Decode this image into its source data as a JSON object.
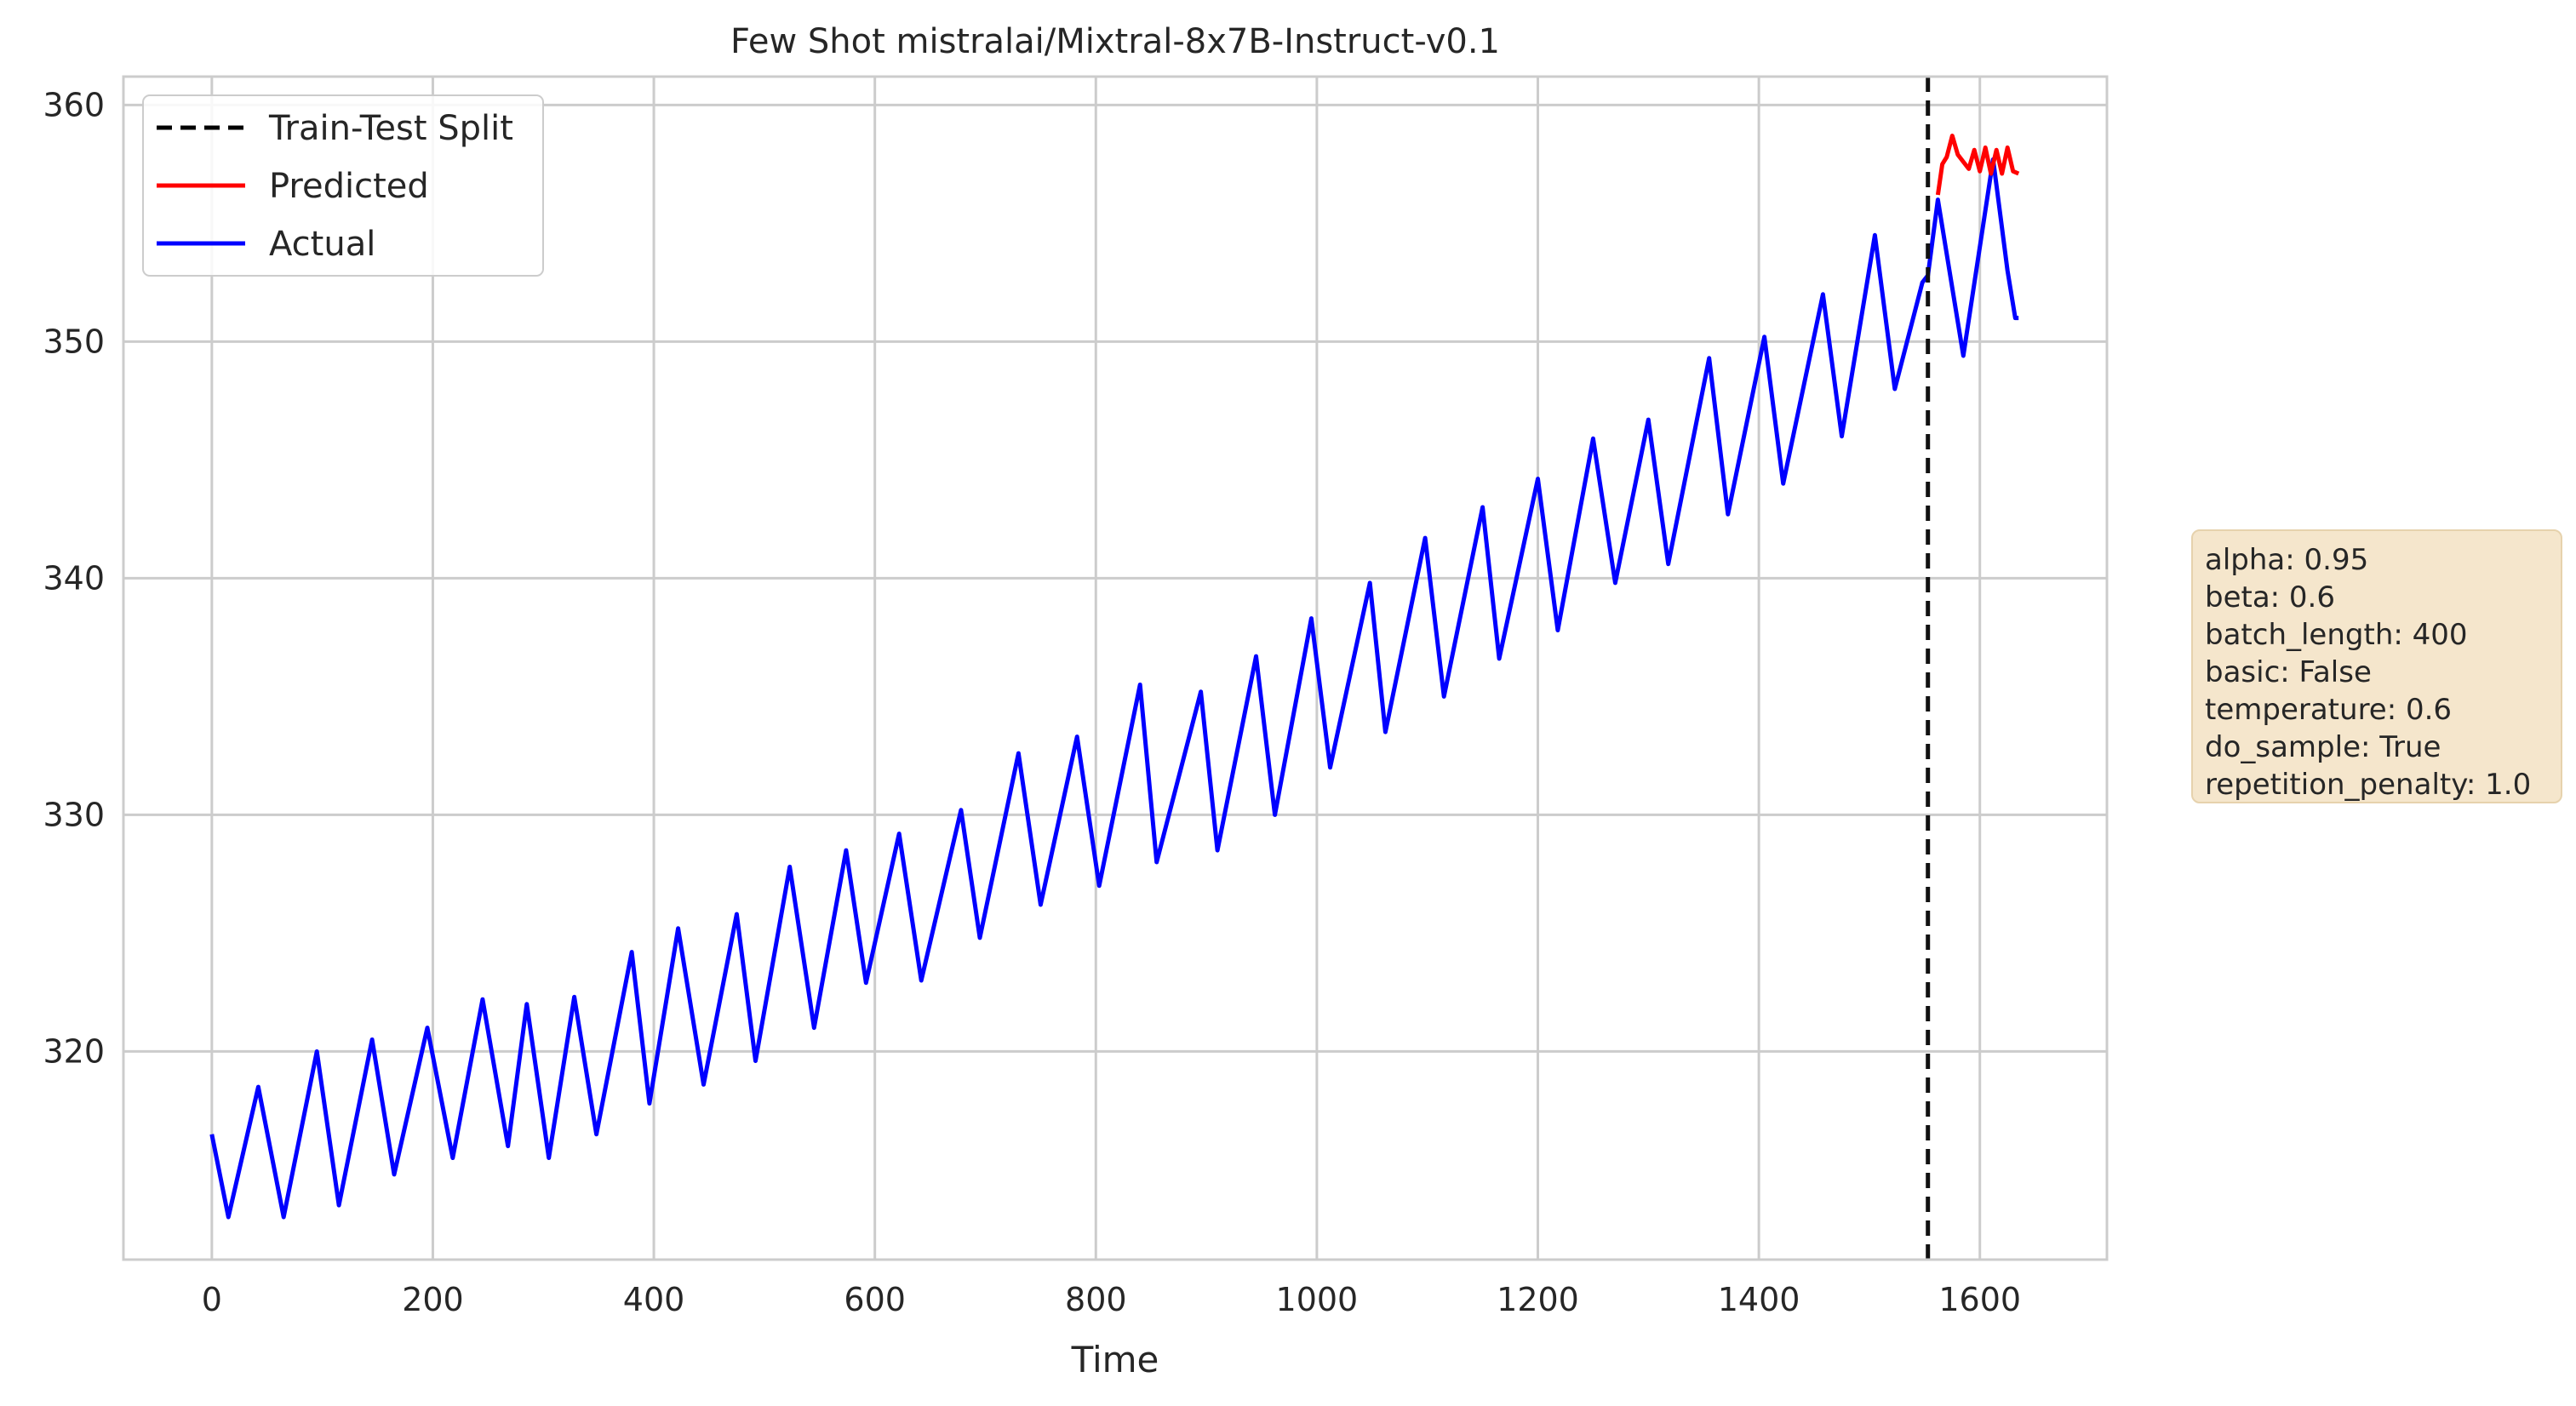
{
  "chart_data": {
    "type": "line",
    "title": "Few Shot mistralai/Mixtral-8x7B-Instruct-v0.1",
    "xlabel": "Time",
    "ylabel": "",
    "xlim": [
      -80,
      1715
    ],
    "ylim": [
      311.2,
      361.2
    ],
    "xticks": [
      0,
      200,
      400,
      600,
      800,
      1000,
      1200,
      1400,
      1600
    ],
    "yticks": [
      320,
      330,
      340,
      350,
      360
    ],
    "grid": true,
    "legend": {
      "placement": "top-left",
      "entries": [
        {
          "name": "Train-Test Split",
          "color": "#000000",
          "style": "dashed"
        },
        {
          "name": "Predicted",
          "color": "#ff0000",
          "style": "solid"
        },
        {
          "name": "Actual",
          "color": "#0000ff",
          "style": "solid"
        }
      ]
    },
    "split_x": 1553,
    "series": [
      {
        "name": "Actual",
        "color": "#0000ff",
        "x": [
          0,
          15,
          42,
          65,
          95,
          115,
          145,
          165,
          195,
          218,
          245,
          268,
          285,
          305,
          328,
          348,
          380,
          396,
          422,
          445,
          475,
          492,
          523,
          545,
          574,
          592,
          622,
          642,
          678,
          695,
          730,
          750,
          783,
          803,
          840,
          855,
          895,
          910,
          945,
          962,
          995,
          1012,
          1048,
          1062,
          1098,
          1115,
          1150,
          1165,
          1200,
          1218,
          1250,
          1270,
          1300,
          1318,
          1355,
          1372,
          1405,
          1422,
          1458,
          1475,
          1505,
          1523,
          1548,
          1553,
          1562,
          1585,
          1612,
          1625,
          1632,
          1635
        ],
        "values": [
          316.5,
          313,
          318.5,
          313,
          320,
          313.5,
          320.5,
          314.8,
          321,
          315.5,
          322.2,
          316,
          322,
          315.5,
          322.3,
          316.5,
          324.2,
          317.8,
          325.2,
          318.6,
          325.8,
          319.6,
          327.8,
          321,
          328.5,
          322.9,
          329.2,
          323,
          330.2,
          324.8,
          332.6,
          326.2,
          333.3,
          327,
          335.5,
          328,
          335.2,
          328.5,
          336.7,
          330,
          338.3,
          332,
          339.8,
          333.5,
          341.7,
          335,
          343,
          336.6,
          344.2,
          337.8,
          345.9,
          339.8,
          346.7,
          340.6,
          349.3,
          342.7,
          350.2,
          344,
          352,
          346,
          354.5,
          348,
          352.5,
          352.8,
          356,
          349.4,
          357.7,
          353,
          351,
          351
        ]
      },
      {
        "name": "Predicted",
        "color": "#ff0000",
        "x": [
          1562,
          1566,
          1570,
          1575,
          1580,
          1585,
          1590,
          1595,
          1600,
          1605,
          1610,
          1615,
          1620,
          1625,
          1630,
          1635
        ],
        "values": [
          356.2,
          357.5,
          357.8,
          358.7,
          357.9,
          357.6,
          357.3,
          358.1,
          357.2,
          358.2,
          357.1,
          358.1,
          357.1,
          358.2,
          357.2,
          357.1
        ]
      }
    ]
  },
  "params": [
    "alpha: 0.95",
    "beta: 0.6",
    "batch_length: 400",
    "basic: False",
    "temperature: 0.6",
    "do_sample: True",
    "repetition_penalty: 1.0"
  ]
}
